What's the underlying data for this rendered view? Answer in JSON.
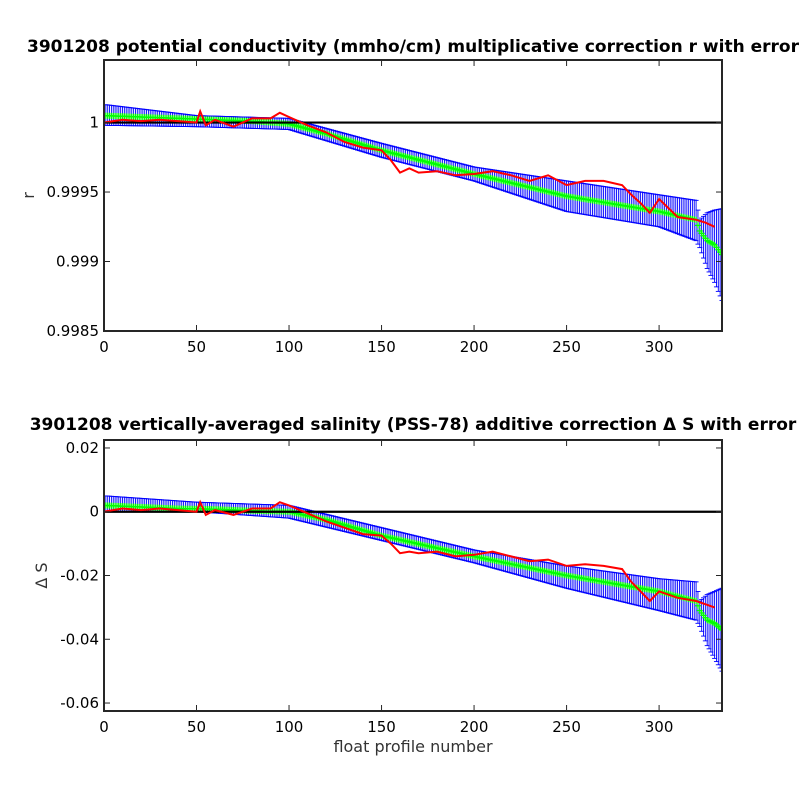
{
  "chart_data": [
    {
      "type": "line",
      "title": "3901208 potential conductivity (mmho/cm) multiplicative correction r with error",
      "xlabel": "",
      "ylabel": "r",
      "xlim": [
        0,
        334
      ],
      "ylim": [
        0.9985,
        1.00045
      ],
      "xticks": [
        0,
        50,
        100,
        150,
        200,
        250,
        300
      ],
      "xtick_labels": [
        "0",
        "50",
        "100",
        "150",
        "200",
        "250",
        "300"
      ],
      "yticks": [
        0.9985,
        0.999,
        0.9995,
        1
      ],
      "ytick_labels": [
        "0.9985",
        "0.999",
        "0.9995",
        "1"
      ],
      "reference_line": 1,
      "series": [
        {
          "role": "error bounds",
          "color": "#0000ff",
          "x": [
            0,
            50,
            100,
            150,
            200,
            250,
            300,
            320,
            322,
            326,
            330,
            334
          ],
          "upper": [
            1.00013,
            1.00005,
            1.00003,
            0.99985,
            0.99968,
            0.99958,
            0.99948,
            0.99944,
            0.9993,
            0.99935,
            0.99937,
            0.99938
          ],
          "lower": [
            0.99998,
            0.99997,
            0.99995,
            0.99975,
            0.99958,
            0.99936,
            0.99925,
            0.99915,
            0.9991,
            0.99895,
            0.99885,
            0.99872
          ]
        },
        {
          "role": "fitted correction",
          "color": "#00ff00",
          "x": [
            0,
            20,
            40,
            60,
            80,
            100,
            120,
            150,
            200,
            250,
            300,
            320,
            322,
            326,
            330,
            334
          ],
          "y": [
            1.00005,
            1.00004,
            1.00003,
            1.00002,
            1.00001,
            0.99999,
            0.99992,
            0.9998,
            0.99963,
            0.99947,
            0.99936,
            0.9993,
            0.99922,
            0.99915,
            0.99912,
            0.99905
          ]
        },
        {
          "role": "correction estimate",
          "color": "#ff0000",
          "x": [
            0,
            10,
            20,
            30,
            40,
            50,
            52,
            55,
            60,
            70,
            80,
            90,
            95,
            100,
            110,
            120,
            130,
            140,
            150,
            155,
            160,
            165,
            170,
            180,
            190,
            200,
            210,
            220,
            230,
            240,
            250,
            260,
            270,
            280,
            285,
            290,
            295,
            300,
            310,
            320,
            325,
            330
          ],
          "y": [
            1.0,
            1.00002,
            1.00001,
            1.00002,
            1.00001,
            1.0,
            1.00008,
            0.99998,
            1.00002,
            0.99997,
            1.00003,
            1.00003,
            1.00007,
            1.00004,
            0.99998,
            0.99993,
            0.99986,
            0.99982,
            0.9998,
            0.99973,
            0.99964,
            0.99967,
            0.99964,
            0.99965,
            0.99962,
            0.99963,
            0.99965,
            0.99962,
            0.99958,
            0.99962,
            0.99955,
            0.99958,
            0.99958,
            0.99955,
            0.99948,
            0.99942,
            0.99935,
            0.99945,
            0.99932,
            0.9993,
            0.99928,
            0.99925
          ]
        }
      ]
    },
    {
      "type": "line",
      "title": "3901208 vertically-averaged salinity (PSS-78) additive correction Δ S with error",
      "xlabel": "float profile number",
      "ylabel": "Δ S",
      "xlim": [
        0,
        334
      ],
      "ylim": [
        -0.0625,
        0.0225
      ],
      "xticks": [
        0,
        50,
        100,
        150,
        200,
        250,
        300
      ],
      "xtick_labels": [
        "0",
        "50",
        "100",
        "150",
        "200",
        "250",
        "300"
      ],
      "yticks": [
        -0.06,
        -0.04,
        -0.02,
        0,
        0.02
      ],
      "ytick_labels": [
        "-0.06",
        "-0.04",
        "-0.02",
        "0",
        "0.02"
      ],
      "reference_line": 0,
      "series": [
        {
          "role": "error bounds",
          "color": "#0000ff",
          "x": [
            0,
            50,
            100,
            150,
            200,
            250,
            300,
            320,
            322,
            326,
            330,
            334
          ],
          "upper": [
            0.005,
            0.003,
            0.002,
            -0.005,
            -0.012,
            -0.017,
            -0.021,
            -0.022,
            -0.028,
            -0.026,
            -0.025,
            -0.024
          ],
          "lower": [
            0.0,
            0.0,
            -0.002,
            -0.009,
            -0.016,
            -0.024,
            -0.031,
            -0.034,
            -0.036,
            -0.042,
            -0.046,
            -0.05
          ]
        },
        {
          "role": "fitted correction",
          "color": "#00ff00",
          "x": [
            0,
            20,
            40,
            60,
            80,
            100,
            120,
            150,
            200,
            250,
            300,
            320,
            322,
            326,
            330,
            334
          ],
          "y": [
            0.002,
            0.0015,
            0.001,
            0.0008,
            0.0003,
            0.0,
            -0.0025,
            -0.0075,
            -0.014,
            -0.02,
            -0.025,
            -0.028,
            -0.031,
            -0.034,
            -0.035,
            -0.037
          ]
        },
        {
          "role": "correction estimate",
          "color": "#ff0000",
          "x": [
            0,
            10,
            20,
            30,
            40,
            50,
            52,
            55,
            60,
            70,
            80,
            90,
            95,
            100,
            110,
            120,
            130,
            140,
            150,
            155,
            160,
            165,
            170,
            180,
            190,
            200,
            210,
            220,
            230,
            240,
            250,
            260,
            270,
            280,
            285,
            290,
            295,
            300,
            310,
            320,
            325,
            330
          ],
          "y": [
            0.0,
            0.001,
            0.0005,
            0.001,
            0.0005,
            0.0,
            0.003,
            -0.001,
            0.0005,
            -0.001,
            0.001,
            0.001,
            0.003,
            0.002,
            -0.0005,
            -0.003,
            -0.005,
            -0.007,
            -0.0075,
            -0.01,
            -0.013,
            -0.0125,
            -0.013,
            -0.0125,
            -0.014,
            -0.0135,
            -0.0125,
            -0.014,
            -0.0155,
            -0.015,
            -0.017,
            -0.0165,
            -0.017,
            -0.018,
            -0.022,
            -0.025,
            -0.028,
            -0.025,
            -0.027,
            -0.028,
            -0.029,
            -0.03
          ]
        }
      ]
    }
  ]
}
